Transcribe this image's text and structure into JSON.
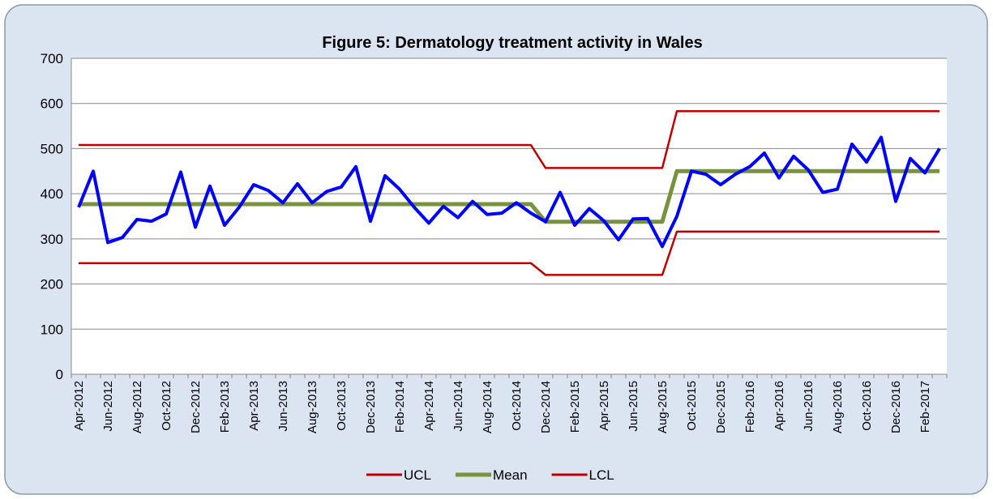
{
  "chart_data": {
    "type": "line",
    "title": "Figure 5: Dermatology treatment activity in Wales",
    "categories": [
      "Apr-2012",
      null,
      "Jun-2012",
      null,
      "Aug-2012",
      null,
      "Oct-2012",
      null,
      "Dec-2012",
      null,
      "Feb-2013",
      null,
      "Apr-2013",
      null,
      "Jun-2013",
      null,
      "Aug-2013",
      null,
      "Oct-2013",
      null,
      "Dec-2013",
      null,
      "Feb-2014",
      null,
      "Apr-2014",
      null,
      "Jun-2014",
      null,
      "Aug-2014",
      null,
      "Oct-2014",
      null,
      "Dec-2014",
      null,
      "Feb-2015",
      null,
      "Apr-2015",
      null,
      "Jun-2015",
      null,
      "Aug-2015",
      null,
      "Oct-2015",
      null,
      "Dec-2015",
      null,
      "Feb-2016",
      null,
      "Apr-2016",
      null,
      "Jun-2016",
      null,
      "Aug-2016",
      null,
      "Oct-2016",
      null,
      "Dec-2016",
      null,
      "Feb-2017",
      null
    ],
    "series": [
      {
        "color": "#0000ff",
        "values": [
          370,
          450,
          292,
          303,
          343,
          339,
          355,
          448,
          326,
          417,
          330,
          370,
          420,
          407,
          380,
          422,
          380,
          405,
          415,
          460,
          339,
          440,
          410,
          370,
          335,
          372,
          347,
          383,
          354,
          357,
          380,
          357,
          338,
          403,
          330,
          367,
          340,
          298,
          344,
          345,
          283,
          350,
          450,
          443,
          420,
          443,
          460,
          490,
          435,
          483,
          453,
          403,
          410,
          510,
          470,
          525,
          383,
          478,
          446,
          500
        ]
      },
      {
        "name": "UCL",
        "color": "#c00000",
        "values": [
          508,
          508,
          508,
          508,
          508,
          508,
          508,
          508,
          508,
          508,
          508,
          508,
          508,
          508,
          508,
          508,
          508,
          508,
          508,
          508,
          508,
          508,
          508,
          508,
          508,
          508,
          508,
          508,
          508,
          508,
          508,
          508,
          457,
          457,
          457,
          457,
          457,
          457,
          457,
          457,
          457,
          583,
          583,
          583,
          583,
          583,
          583,
          583,
          583,
          583,
          583,
          583,
          583,
          583,
          583,
          583,
          583,
          583,
          583,
          583
        ]
      },
      {
        "name": "Mean",
        "color": "#77933c",
        "values": [
          377,
          377,
          377,
          377,
          377,
          377,
          377,
          377,
          377,
          377,
          377,
          377,
          377,
          377,
          377,
          377,
          377,
          377,
          377,
          377,
          377,
          377,
          377,
          377,
          377,
          377,
          377,
          377,
          377,
          377,
          377,
          377,
          338,
          338,
          338,
          338,
          338,
          338,
          338,
          338,
          338,
          450,
          450,
          450,
          450,
          450,
          450,
          450,
          450,
          450,
          450,
          450,
          450,
          450,
          450,
          450,
          450,
          450,
          450,
          450
        ]
      },
      {
        "name": "LCL",
        "color": "#c00000",
        "values": [
          246,
          246,
          246,
          246,
          246,
          246,
          246,
          246,
          246,
          246,
          246,
          246,
          246,
          246,
          246,
          246,
          246,
          246,
          246,
          246,
          246,
          246,
          246,
          246,
          246,
          246,
          246,
          246,
          246,
          246,
          246,
          246,
          220,
          220,
          220,
          220,
          220,
          220,
          220,
          220,
          220,
          316,
          316,
          316,
          316,
          316,
          316,
          316,
          316,
          316,
          316,
          316,
          316,
          316,
          316,
          316,
          316,
          316,
          316,
          316
        ]
      }
    ],
    "ylim": [
      0,
      700
    ],
    "yticks": [
      0,
      100,
      200,
      300,
      400,
      500,
      600,
      700
    ],
    "grid": true
  }
}
